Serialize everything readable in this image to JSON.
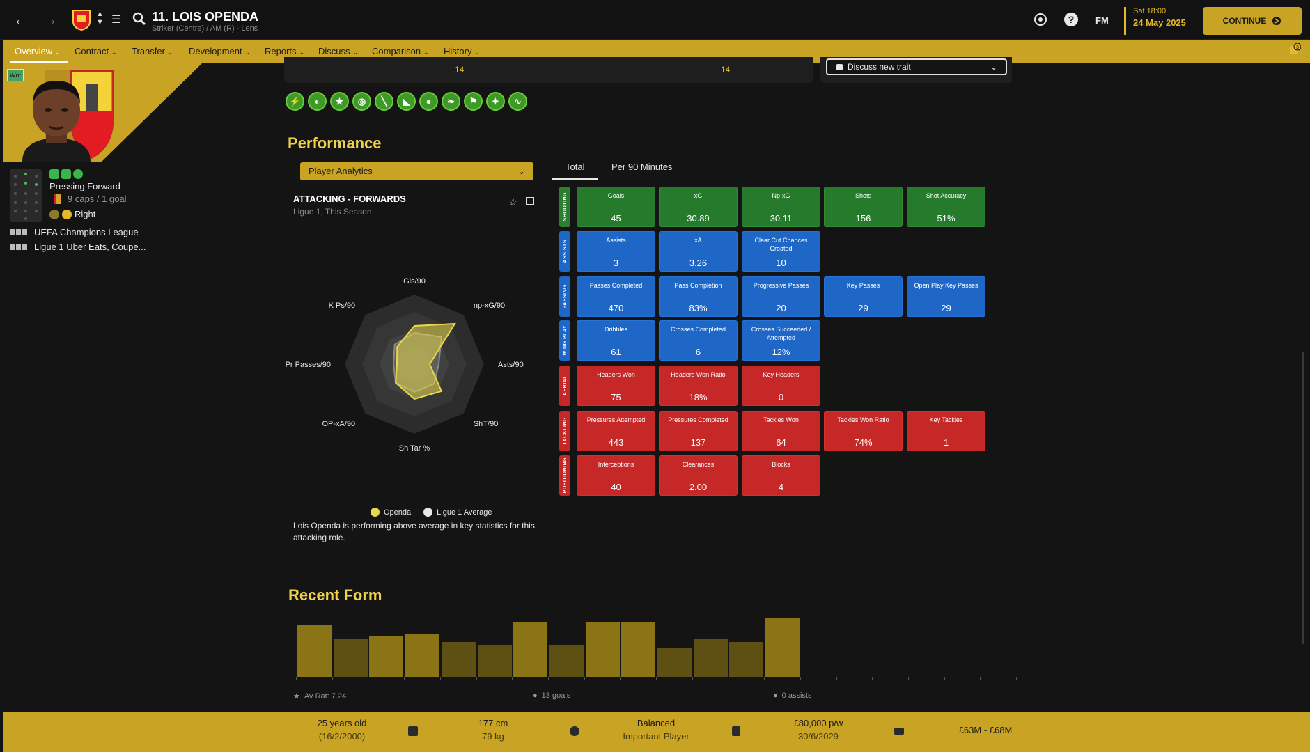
{
  "header": {
    "player_title": "11. LOIS OPENDA",
    "player_subtitle": "Striker (Centre) / AM (R) - Lens",
    "time": "Sat 18:00",
    "date": "24 May 2025",
    "continue_label": "CONTINUE",
    "fm_label": "FM"
  },
  "tabs": [
    {
      "label": "Overview"
    },
    {
      "label": "Contract"
    },
    {
      "label": "Transfer"
    },
    {
      "label": "Development"
    },
    {
      "label": "Reports"
    },
    {
      "label": "Discuss"
    },
    {
      "label": "Comparison"
    },
    {
      "label": "History"
    }
  ],
  "notification_count": "3",
  "left": {
    "wnt": "Wnt",
    "role": "Pressing Forward",
    "caps": "9 caps / 1 goal",
    "foot": "Right",
    "competitions": [
      "UEFA Champions League",
      "Ligue 1 Uber Eats, Coupe..."
    ]
  },
  "traits_strip": {
    "values": [
      "14",
      "14"
    ],
    "dropdown": "Discuss new trait"
  },
  "trait_icons": [
    "lightning-icon",
    "dribble-icon",
    "star-icon",
    "target-icon",
    "boot-icon",
    "slide-icon",
    "head-icon",
    "pass-icon",
    "flag-icon",
    "shot-icon",
    "wave-icon"
  ],
  "performance": {
    "title": "Performance",
    "dropdown": "Player Analytics",
    "radar_title": "ATTACKING - FORWARDS",
    "radar_subtitle": "Ligue 1, This Season",
    "legend_player": "Openda",
    "legend_avg": "Ligue 1 Average",
    "summary": "Lois Openda is performing above average in key statistics for this attacking role.",
    "stat_tabs": [
      "Total",
      "Per 90 Minutes"
    ]
  },
  "radar": {
    "axes": [
      "Gls/90",
      "np-xG/90",
      "Asts/90",
      "ShT/90",
      "Sh Tar %",
      "OP-xA/90",
      "Pr Passes/90",
      "K Ps/90"
    ],
    "player": [
      0.55,
      0.82,
      0.22,
      0.55,
      0.5,
      0.38,
      0.25,
      0.35
    ],
    "average": [
      0.45,
      0.55,
      0.35,
      0.4,
      0.4,
      0.38,
      0.3,
      0.4
    ],
    "colors": {
      "player": "#e8d84a",
      "average": "#9a9a9a"
    }
  },
  "stats": [
    {
      "category": "SHOOTING",
      "color": "green",
      "tiles": [
        {
          "label": "Goals",
          "value": "45"
        },
        {
          "label": "xG",
          "value": "30.89"
        },
        {
          "label": "Np-xG",
          "value": "30.11"
        },
        {
          "label": "Shots",
          "value": "156"
        },
        {
          "label": "Shot Accuracy",
          "value": "51%"
        }
      ]
    },
    {
      "category": "ASSISTS",
      "color": "blue",
      "tiles": [
        {
          "label": "Assists",
          "value": "3"
        },
        {
          "label": "xA",
          "value": "3.26"
        },
        {
          "label": "Clear Cut Chances Created",
          "value": "10"
        }
      ]
    },
    {
      "category": "PASSING",
      "color": "blue",
      "tiles": [
        {
          "label": "Passes Completed",
          "value": "470"
        },
        {
          "label": "Pass Completion",
          "value": "83%"
        },
        {
          "label": "Progressive Passes",
          "value": "20"
        },
        {
          "label": "Key Passes",
          "value": "29"
        },
        {
          "label": "Open Play Key Passes",
          "value": "29"
        }
      ]
    },
    {
      "category": "WING PLAY",
      "color": "blue",
      "tiles": [
        {
          "label": "Dribbles",
          "value": "61"
        },
        {
          "label": "Crosses Completed",
          "value": "6"
        },
        {
          "label": "Crosses Succeeded / Attempted",
          "value": "12%"
        }
      ]
    },
    {
      "category": "AERIAL",
      "color": "red",
      "tiles": [
        {
          "label": "Headers Won",
          "value": "75"
        },
        {
          "label": "Headers Won Ratio",
          "value": "18%"
        },
        {
          "label": "Key Headers",
          "value": "0"
        }
      ]
    },
    {
      "category": "TACKLING",
      "color": "red",
      "tiles": [
        {
          "label": "Pressures Attempted",
          "value": "443"
        },
        {
          "label": "Pressures Completed",
          "value": "137"
        },
        {
          "label": "Tackles Won",
          "value": "64"
        },
        {
          "label": "Tackles Won Ratio",
          "value": "74%"
        },
        {
          "label": "Key Tackles",
          "value": "1"
        }
      ]
    },
    {
      "category": "POSITIONING",
      "color": "red",
      "tiles": [
        {
          "label": "Interceptions",
          "value": "40"
        },
        {
          "label": "Clearances",
          "value": "2.00"
        },
        {
          "label": "Blocks",
          "value": "4"
        }
      ]
    }
  ],
  "recent_form": {
    "title": "Recent Form",
    "ratings": [
      7.8,
      7.3,
      7.4,
      7.5,
      7.2,
      7.1,
      7.9,
      7.1,
      7.9,
      7.9,
      7.0,
      7.3,
      7.2,
      8.0
    ],
    "highlighted": [
      true,
      false,
      true,
      true,
      false,
      false,
      true,
      false,
      true,
      true,
      false,
      false,
      false,
      true
    ],
    "slots": 20,
    "av_rat": "Av Rat: 7.24",
    "goals": "13 goals",
    "assists": "0 assists"
  },
  "bottom": {
    "age": "25 years old",
    "dob": "(16/2/2000)",
    "height": "177 cm",
    "weight": "79 kg",
    "personality": "Balanced",
    "status": "Important Player",
    "wage": "£80,000 p/w",
    "expiry": "30/6/2029",
    "value": "£63M - £68M"
  }
}
